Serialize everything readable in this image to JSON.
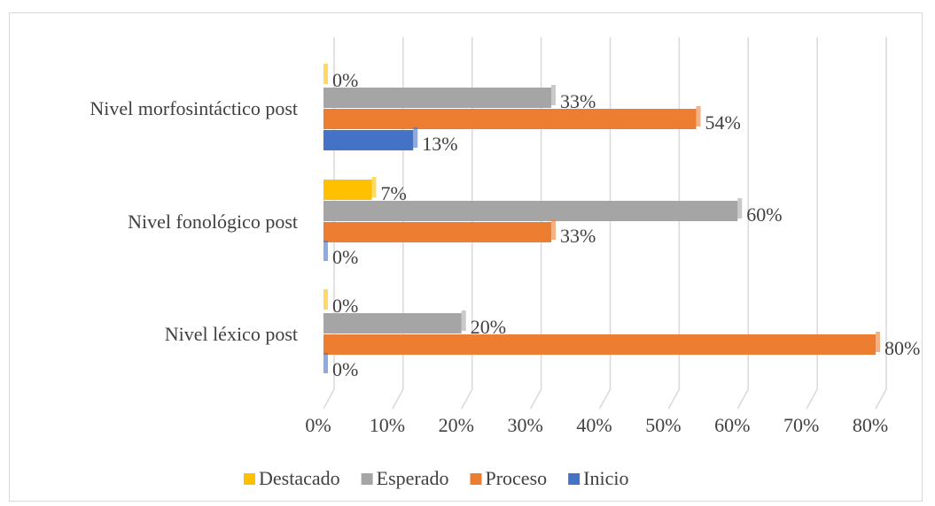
{
  "chart_data": {
    "type": "bar",
    "orientation": "horizontal",
    "categories": [
      "Nivel morfosintáctico post",
      "Nivel fonológico post",
      "Nivel léxico post"
    ],
    "series": [
      {
        "name": "Destacado",
        "color": "#ffc000",
        "values": [
          0,
          7,
          0
        ],
        "value_labels": [
          "0%",
          "7%",
          "0%"
        ]
      },
      {
        "name": "Esperado",
        "color": "#a5a5a5",
        "values": [
          33,
          60,
          20
        ],
        "value_labels": [
          "33%",
          "60%",
          "20%"
        ]
      },
      {
        "name": "Proceso",
        "color": "#ed7d31",
        "values": [
          54,
          33,
          80
        ],
        "value_labels": [
          "54%",
          "33%",
          "80%"
        ]
      },
      {
        "name": "Inicio",
        "color": "#4472c4",
        "values": [
          13,
          0,
          0
        ],
        "value_labels": [
          "13%",
          "0%",
          "0%"
        ]
      }
    ],
    "xlim": [
      0,
      80
    ],
    "xticks": [
      {
        "value": 0,
        "label": "0%"
      },
      {
        "value": 10,
        "label": "10%"
      },
      {
        "value": 20,
        "label": "20%"
      },
      {
        "value": 30,
        "label": "30%"
      },
      {
        "value": 40,
        "label": "40%"
      },
      {
        "value": 50,
        "label": "50%"
      },
      {
        "value": 60,
        "label": "60%"
      },
      {
        "value": 70,
        "label": "70%"
      },
      {
        "value": 80,
        "label": "80%"
      }
    ],
    "grid": true,
    "legend": "bottom"
  }
}
